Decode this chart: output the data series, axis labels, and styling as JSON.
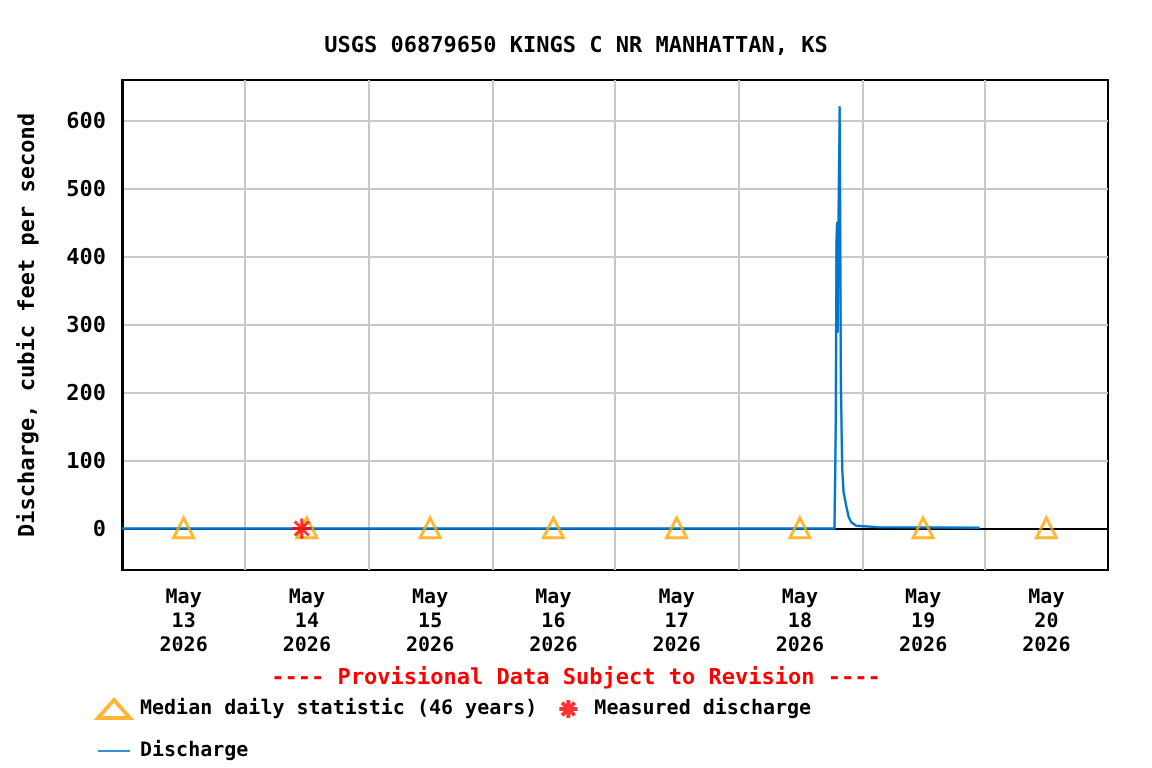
{
  "chart_data": {
    "type": "line",
    "title": "USGS 06879650 KINGS C NR MANHATTAN, KS",
    "ylabel": "Discharge, cubic feet per second",
    "annotations": [
      "---- Provisional Data Subject to Revision ----"
    ],
    "xlim": [
      "2026-05-13",
      "2026-05-21"
    ],
    "xticks": [
      {
        "value": "2026-05-13T12:00",
        "label": "May\n13\n2026"
      },
      {
        "value": "2026-05-14T12:00",
        "label": "May\n14\n2026"
      },
      {
        "value": "2026-05-15T12:00",
        "label": "May\n15\n2026"
      },
      {
        "value": "2026-05-16T12:00",
        "label": "May\n16\n2026"
      },
      {
        "value": "2026-05-17T12:00",
        "label": "May\n17\n2026"
      },
      {
        "value": "2026-05-18T12:00",
        "label": "May\n18\n2026"
      },
      {
        "value": "2026-05-19T12:00",
        "label": "May\n19\n2026"
      },
      {
        "value": "2026-05-20T12:00",
        "label": "May\n20\n2026"
      },
      {
        "value": "2026-05-14",
        "label": null
      },
      {
        "value": "2026-05-15",
        "label": null
      },
      {
        "value": "2026-05-16",
        "label": null
      },
      {
        "value": "2026-05-17",
        "label": null
      },
      {
        "value": "2026-05-18",
        "label": null
      },
      {
        "value": "2026-05-19",
        "label": null
      },
      {
        "value": "2026-05-20",
        "label": null
      }
    ],
    "ylim": [
      -60,
      660
    ],
    "yticks": [
      0,
      100,
      200,
      300,
      400,
      500,
      600
    ],
    "grid": true,
    "legend": "bottom",
    "series": [
      {
        "name": "Median daily statistic (46 years)",
        "type": "scatter",
        "marker": "triangle",
        "color": "#ffa500",
        "x": [
          "2026-05-13T12:00",
          "2026-05-14T12:00",
          "2026-05-15T12:00",
          "2026-05-16T12:00",
          "2026-05-17T12:00",
          "2026-05-18T12:00",
          "2026-05-19T12:00",
          "2026-05-20T12:00"
        ],
        "values": [
          2,
          2,
          2,
          2,
          2,
          2,
          2,
          2
        ]
      },
      {
        "name": "Measured discharge",
        "type": "scatter",
        "marker": "cross",
        "color": "#ff0000",
        "x": [
          "2026-05-14T11:00"
        ],
        "values": [
          1
        ]
      },
      {
        "name": "Discharge",
        "marker": "none",
        "color": "#0077cc",
        "x": [
          "2026-05-13T00:00",
          "2026-05-18T18:45",
          "2026-05-18T19:00",
          "2026-05-18T19:07",
          "2026-05-18T19:15",
          "2026-05-18T19:22",
          "2026-05-18T19:30",
          "2026-05-18T19:45",
          "2026-05-18T20:00",
          "2026-05-18T20:15",
          "2026-05-18T20:30",
          "2026-05-18T21:00",
          "2026-05-18T21:30",
          "2026-05-18T22:00",
          "2026-05-18T23:00",
          "2026-05-19T03:00",
          "2026-05-19T23:00"
        ],
        "values": [
          1,
          1,
          161,
          420,
          450,
          290,
          430,
          620,
          205,
          88,
          55,
          35,
          18,
          10,
          5,
          3,
          2
        ]
      }
    ]
  }
}
